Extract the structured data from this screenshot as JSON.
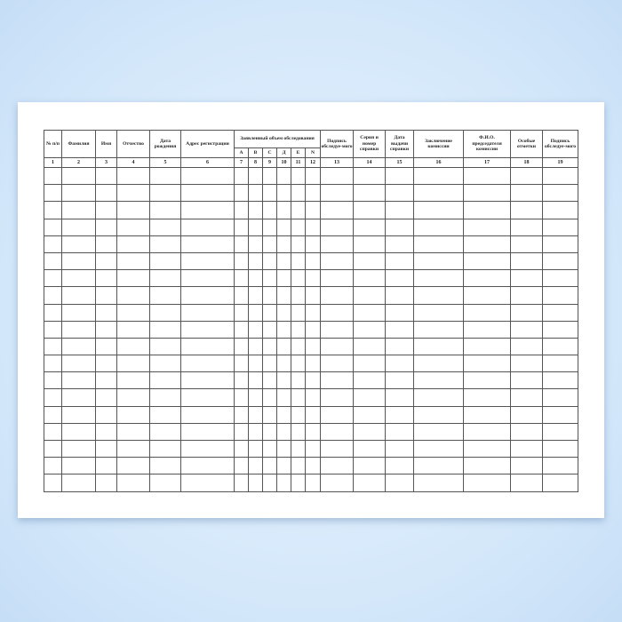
{
  "form": {
    "headers": [
      "№ п/п",
      "Фамилия",
      "Имя",
      "Отчество",
      "Дата рождения",
      "Адрес регистрации",
      "Заявленный объем обследования",
      "Подпись обследуе-мого",
      "Серия и номер справки",
      "Дата выдачи справки",
      "Заключение комиссии",
      "Ф.И.О. председателя комиссии",
      "Особые отметки",
      "Подпись обследуе-мого"
    ],
    "sub_headers": [
      "А",
      "B",
      "C",
      "Д",
      "E",
      "N"
    ],
    "column_numbers": [
      "1",
      "2",
      "3",
      "4",
      "5",
      "6",
      "7",
      "8",
      "9",
      "10",
      "11",
      "12",
      "13",
      "14",
      "15",
      "16",
      "17",
      "18",
      "19"
    ],
    "empty_rows": 19
  }
}
